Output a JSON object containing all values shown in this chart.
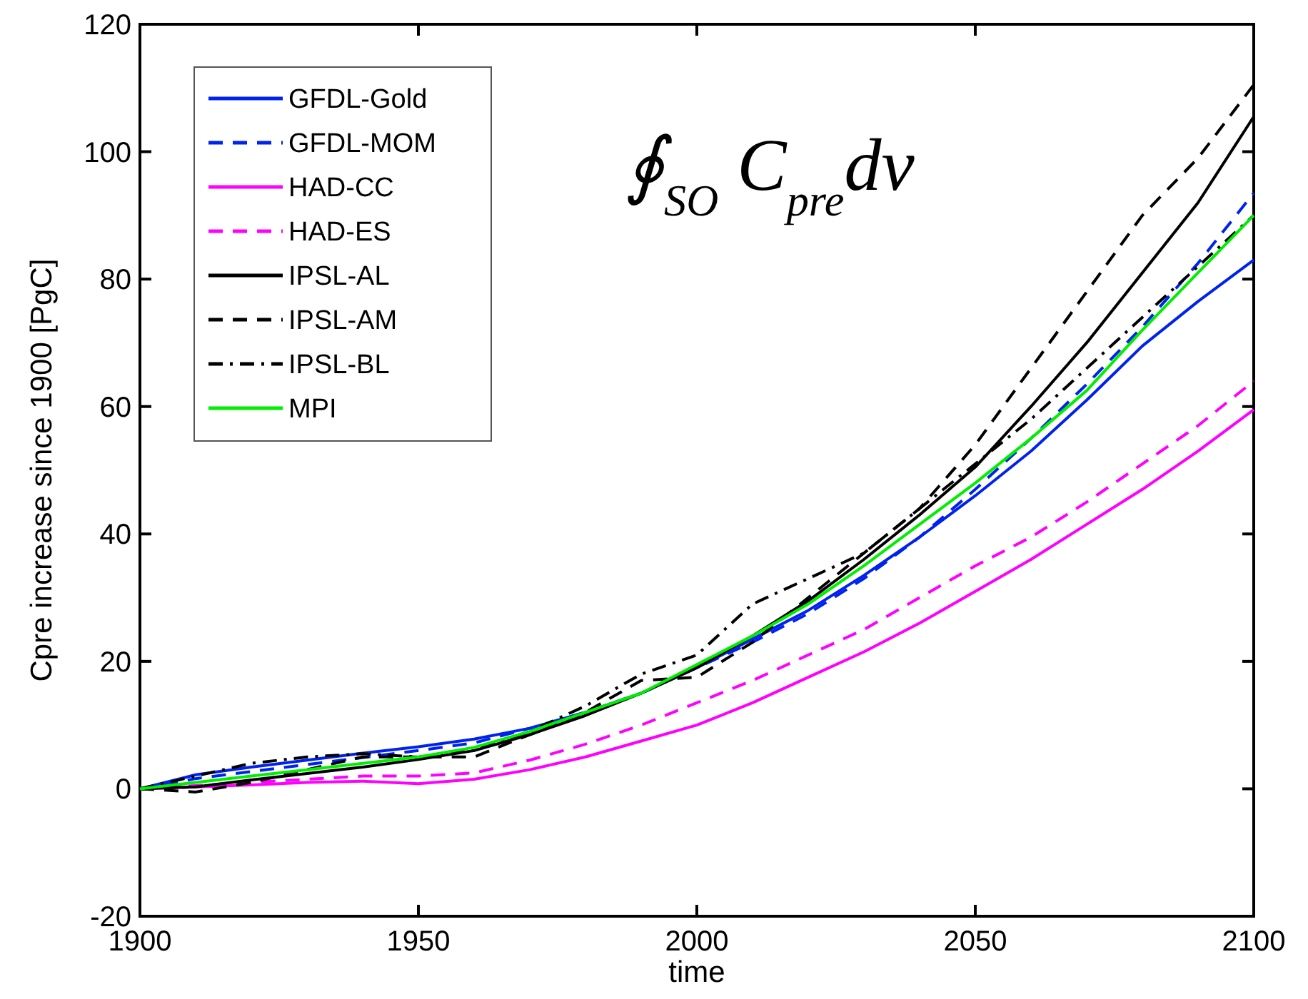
{
  "chart_data": {
    "type": "line",
    "xlabel": "time",
    "ylabel": "Cpre increase since 1900 [PgC]",
    "annotations": [
      "∮$_{SO}$ C$_{pre}$dv"
    ],
    "x": [
      1900,
      1910,
      1920,
      1930,
      1940,
      1950,
      1960,
      1970,
      1980,
      1990,
      2000,
      2010,
      2020,
      2030,
      2040,
      2050,
      2060,
      2070,
      2080,
      2090,
      2100
    ],
    "xlim": [
      1900,
      2100
    ],
    "xticks": [
      1900,
      1950,
      2000,
      2050,
      2100
    ],
    "ylim": [
      -20,
      120
    ],
    "yticks": [
      -20,
      0,
      20,
      40,
      60,
      80,
      100,
      120
    ],
    "grid": false,
    "legend": "top left",
    "marker": "none",
    "series": [
      {
        "name": "GFDL-Gold",
        "color": "#0022ee",
        "line_style": "solid",
        "values": [
          0,
          2.2,
          3.4,
          4.5,
          5.6,
          6.6,
          7.8,
          9.5,
          12,
          15,
          19,
          23.5,
          28,
          33.5,
          39.5,
          46,
          53,
          61,
          69.5,
          76.5,
          83
        ]
      },
      {
        "name": "GFDL-MOM",
        "color": "#0022ee",
        "line_style": "dashed",
        "values": [
          0,
          1.6,
          2.7,
          3.8,
          4.9,
          6,
          7.2,
          9.5,
          12,
          15,
          19,
          23,
          27.5,
          33,
          39.5,
          47,
          55,
          63.5,
          72.5,
          82.5,
          93.5
        ]
      },
      {
        "name": "HAD-CC",
        "color": "#ff00ff",
        "line_style": "solid",
        "values": [
          0,
          0.3,
          0.6,
          1,
          1.2,
          0.8,
          1.5,
          3,
          5,
          7.5,
          10,
          13.5,
          17.5,
          21.5,
          26,
          31,
          36,
          41.5,
          47,
          53,
          59.5
        ]
      },
      {
        "name": "HAD-ES",
        "color": "#ff00ff",
        "line_style": "dashed",
        "values": [
          0,
          0.5,
          1,
          1.5,
          2,
          2,
          2.5,
          4.5,
          7,
          10,
          13.5,
          17,
          21,
          25,
          30,
          35,
          39.5,
          45,
          51,
          57,
          64
        ]
      },
      {
        "name": "IPSL-AL",
        "color": "#000000",
        "line_style": "solid",
        "values": [
          0,
          0.3,
          1.4,
          2.4,
          3.4,
          4.6,
          6,
          8.5,
          11.5,
          15,
          19,
          24,
          29.5,
          36,
          43,
          50.5,
          60,
          70,
          81,
          92,
          105.5
        ]
      },
      {
        "name": "IPSL-AM",
        "color": "#000000",
        "line_style": "dashed",
        "values": [
          0,
          -0.5,
          1,
          3,
          5,
          5,
          5,
          8.5,
          12,
          17,
          17.5,
          23,
          30,
          37,
          44,
          54,
          66,
          78,
          90,
          99,
          110.5
        ]
      },
      {
        "name": "IPSL-BL",
        "color": "#000000",
        "line_style": "dashdot",
        "values": [
          0,
          2,
          4,
          5,
          5.5,
          5,
          6,
          9,
          13,
          18,
          21,
          29,
          33,
          37,
          44,
          51,
          58,
          66,
          74,
          82,
          90
        ]
      },
      {
        "name": "MPI",
        "color": "#00ee00",
        "line_style": "solid",
        "values": [
          0,
          1,
          2,
          3,
          4,
          5,
          6.5,
          9,
          12,
          15,
          19.5,
          24,
          29,
          35,
          41.5,
          48,
          55,
          62.5,
          72,
          81,
          90
        ]
      }
    ]
  }
}
